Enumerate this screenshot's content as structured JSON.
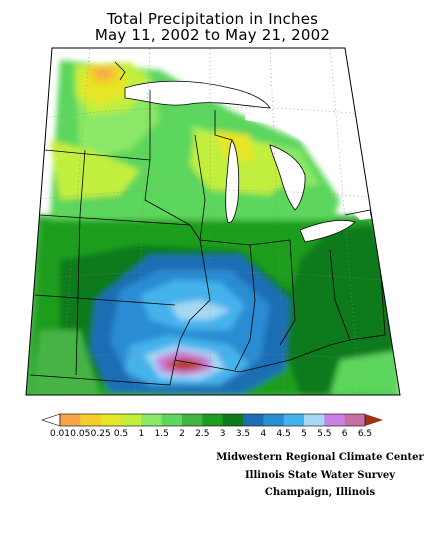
{
  "title_line1": "Total Precipitation in Inches",
  "title_line2": "May 11, 2002 to May 21, 2002",
  "legend": {
    "labels": [
      "0.01",
      "0.05",
      "0.25",
      "0.5",
      "1",
      "1.5",
      "2",
      "2.5",
      "3",
      "3.5",
      "4",
      "4.5",
      "5",
      "5.5",
      "6",
      "6.5"
    ],
    "colors": [
      "#f7a64a",
      "#f5cc2c",
      "#e6e628",
      "#c2ee3c",
      "#8ae866",
      "#5cd65c",
      "#44b444",
      "#1e9e1e",
      "#0f7a1e",
      "#1e6eb4",
      "#2a8cd2",
      "#45b2ec",
      "#a6d8f4",
      "#c882e6",
      "#c86ea6",
      "#c8463c",
      "#a03214"
    ]
  },
  "credits": {
    "line1": "Midwestern Regional Climate Center",
    "line2": "Illinois State Water Survey",
    "line3": "Champaign, Illinois"
  }
}
